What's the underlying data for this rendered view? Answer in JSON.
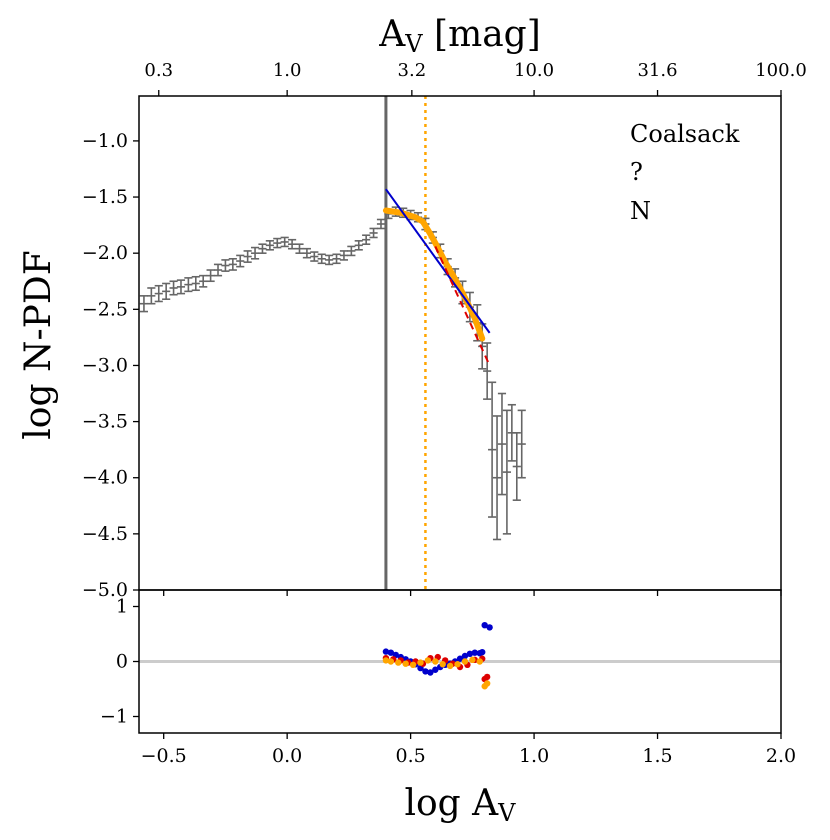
{
  "chart_data": {
    "type": "scatter",
    "main_panel": {
      "ylabel": "log N-PDF",
      "ylim": [
        -5.0,
        -0.6
      ],
      "yticks": [
        -1.0,
        -1.5,
        -2.0,
        -2.5,
        -3.0,
        -3.5,
        -4.0,
        -4.5,
        -5.0
      ],
      "ytick_labels": [
        "−1.0",
        "−1.5",
        "−2.0",
        "−2.5",
        "−3.0",
        "−3.5",
        "−4.0",
        "−4.5",
        "−5.0"
      ],
      "annotations": [
        "Coalsack",
        "?",
        "N"
      ],
      "vline_solid": 0.4,
      "vline_dotted": 0.56,
      "pdf_points": [
        [
          -0.58,
          -2.45,
          0.07
        ],
        [
          -0.55,
          -2.38,
          0.07
        ],
        [
          -0.52,
          -2.36,
          0.07
        ],
        [
          -0.49,
          -2.34,
          0.07
        ],
        [
          -0.46,
          -2.31,
          0.06
        ],
        [
          -0.43,
          -2.3,
          0.06
        ],
        [
          -0.4,
          -2.28,
          0.06
        ],
        [
          -0.37,
          -2.27,
          0.06
        ],
        [
          -0.34,
          -2.25,
          0.05
        ],
        [
          -0.31,
          -2.2,
          0.05
        ],
        [
          -0.28,
          -2.15,
          0.05
        ],
        [
          -0.25,
          -2.11,
          0.05
        ],
        [
          -0.22,
          -2.1,
          0.05
        ],
        [
          -0.19,
          -2.07,
          0.05
        ],
        [
          -0.16,
          -2.03,
          0.05
        ],
        [
          -0.13,
          -2.0,
          0.05
        ],
        [
          -0.1,
          -1.96,
          0.04
        ],
        [
          -0.07,
          -1.93,
          0.04
        ],
        [
          -0.04,
          -1.91,
          0.04
        ],
        [
          -0.01,
          -1.9,
          0.04
        ],
        [
          0.02,
          -1.92,
          0.04
        ],
        [
          0.05,
          -1.96,
          0.04
        ],
        [
          0.08,
          -2.0,
          0.04
        ],
        [
          0.11,
          -2.03,
          0.04
        ],
        [
          0.14,
          -2.05,
          0.04
        ],
        [
          0.17,
          -2.06,
          0.04
        ],
        [
          0.2,
          -2.05,
          0.04
        ],
        [
          0.23,
          -2.02,
          0.04
        ],
        [
          0.26,
          -1.98,
          0.04
        ],
        [
          0.29,
          -1.93,
          0.04
        ],
        [
          0.32,
          -1.88,
          0.04
        ],
        [
          0.35,
          -1.82,
          0.04
        ],
        [
          0.38,
          -1.74,
          0.04
        ],
        [
          0.41,
          -1.65,
          0.04
        ],
        [
          0.44,
          -1.63,
          0.04
        ],
        [
          0.47,
          -1.64,
          0.04
        ],
        [
          0.5,
          -1.66,
          0.04
        ],
        [
          0.53,
          -1.68,
          0.04
        ],
        [
          0.56,
          -1.74,
          0.05
        ],
        [
          0.59,
          -1.86,
          0.05
        ],
        [
          0.62,
          -1.98,
          0.06
        ],
        [
          0.65,
          -2.12,
          0.07
        ],
        [
          0.68,
          -2.22,
          0.08
        ],
        [
          0.71,
          -2.35,
          0.1
        ],
        [
          0.74,
          -2.48,
          0.13
        ],
        [
          0.77,
          -2.62,
          0.16
        ],
        [
          0.79,
          -2.83,
          0.2
        ],
        [
          0.81,
          -3.05,
          0.25
        ],
        [
          0.83,
          -3.75,
          0.6
        ],
        [
          0.85,
          -4.0,
          0.55
        ],
        [
          0.87,
          -3.7,
          0.45
        ],
        [
          0.89,
          -3.95,
          0.55
        ],
        [
          0.91,
          -3.6,
          0.25
        ],
        [
          0.93,
          -3.9,
          0.3
        ],
        [
          0.95,
          -3.7,
          0.3
        ]
      ],
      "orange_fit": [
        [
          0.4,
          -1.62
        ],
        [
          0.43,
          -1.63
        ],
        [
          0.46,
          -1.64
        ],
        [
          0.49,
          -1.66
        ],
        [
          0.52,
          -1.68
        ],
        [
          0.55,
          -1.72
        ],
        [
          0.58,
          -1.83
        ],
        [
          0.61,
          -1.95
        ],
        [
          0.64,
          -2.08
        ],
        [
          0.67,
          -2.19
        ],
        [
          0.7,
          -2.31
        ],
        [
          0.73,
          -2.44
        ],
        [
          0.76,
          -2.58
        ],
        [
          0.79,
          -2.76
        ]
      ],
      "blue_fit_line": {
        "x": [
          0.4,
          0.82
        ],
        "y": [
          -1.43,
          -2.71
        ]
      },
      "red_dashed": {
        "x": [
          0.6,
          0.82
        ],
        "y": [
          -1.94,
          -3.0
        ]
      }
    },
    "residual_panel": {
      "ylim": [
        -1.3,
        1.3
      ],
      "yticks": [
        1,
        0,
        -1
      ],
      "ytick_labels": [
        "1",
        "0",
        "−1"
      ],
      "zero_line": 0,
      "blue": [
        [
          0.4,
          0.18
        ],
        [
          0.42,
          0.16
        ],
        [
          0.44,
          0.12
        ],
        [
          0.46,
          0.08
        ],
        [
          0.48,
          0.04
        ],
        [
          0.5,
          0.0
        ],
        [
          0.52,
          -0.05
        ],
        [
          0.54,
          -0.12
        ],
        [
          0.56,
          -0.18
        ],
        [
          0.58,
          -0.2
        ],
        [
          0.6,
          -0.15
        ],
        [
          0.62,
          -0.1
        ],
        [
          0.64,
          -0.06
        ],
        [
          0.66,
          -0.04
        ],
        [
          0.68,
          0.0
        ],
        [
          0.7,
          0.05
        ],
        [
          0.72,
          0.1
        ],
        [
          0.74,
          0.14
        ],
        [
          0.76,
          0.16
        ],
        [
          0.78,
          0.15
        ],
        [
          0.79,
          0.17
        ],
        [
          0.8,
          0.66
        ],
        [
          0.82,
          0.62
        ]
      ],
      "red": [
        [
          0.4,
          0.06
        ],
        [
          0.43,
          0.04
        ],
        [
          0.46,
          0.02
        ],
        [
          0.49,
          -0.02
        ],
        [
          0.52,
          0.0
        ],
        [
          0.55,
          -0.04
        ],
        [
          0.58,
          0.06
        ],
        [
          0.61,
          0.08
        ],
        [
          0.64,
          0.02
        ],
        [
          0.67,
          -0.04
        ],
        [
          0.7,
          -0.1
        ],
        [
          0.73,
          -0.06
        ],
        [
          0.76,
          0.03
        ],
        [
          0.79,
          0.05
        ],
        [
          0.8,
          -0.32
        ],
        [
          0.81,
          -0.28
        ]
      ],
      "orange": [
        [
          0.4,
          0.02
        ],
        [
          0.42,
          0.0
        ],
        [
          0.45,
          -0.02
        ],
        [
          0.48,
          -0.04
        ],
        [
          0.51,
          -0.06
        ],
        [
          0.54,
          -0.02
        ],
        [
          0.57,
          0.02
        ],
        [
          0.6,
          0.0
        ],
        [
          0.63,
          -0.05
        ],
        [
          0.66,
          -0.08
        ],
        [
          0.69,
          -0.05
        ],
        [
          0.72,
          0.0
        ],
        [
          0.75,
          0.03
        ],
        [
          0.78,
          0.0
        ],
        [
          0.8,
          -0.45
        ],
        [
          0.81,
          -0.4
        ]
      ]
    },
    "x_axis": {
      "label_base": "log A",
      "label_sub": "V",
      "xlim": [
        -0.6,
        2.0
      ],
      "xticks": [
        -0.5,
        0.0,
        0.5,
        1.0,
        1.5,
        2.0
      ],
      "xtick_labels": [
        "−0.5",
        "0.0",
        "0.5",
        "1.0",
        "1.5",
        "2.0"
      ]
    },
    "top_axis": {
      "label_base": "A",
      "label_sub": "V",
      "label_unit": " [mag]",
      "tick_positions_log": [
        -0.52,
        0.0,
        0.505,
        1.0,
        1.5,
        2.0
      ],
      "tick_labels": [
        "0.3",
        "1.0",
        "3.2",
        "10.0",
        "31.6",
        "100.0"
      ]
    },
    "colors": {
      "pdf": "#666666",
      "orange": "#ffa500",
      "blue": "#0000cc",
      "red": "#dd0000",
      "zero_line": "#cccccc",
      "vline": "#666666",
      "dotted": "#ffa500"
    }
  }
}
